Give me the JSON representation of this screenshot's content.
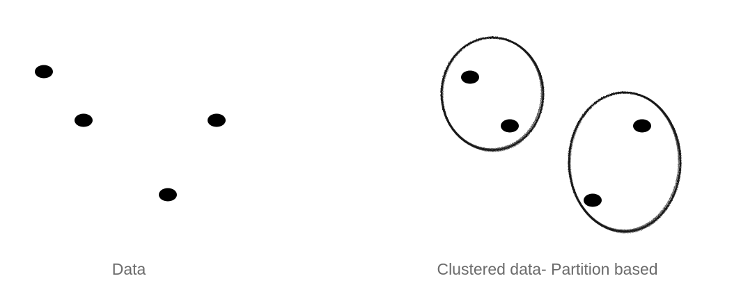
{
  "panels": [
    {
      "caption": "Data",
      "points": [
        "p1",
        "p2",
        "p3",
        "p4"
      ],
      "clusters": []
    },
    {
      "caption": "Clustered data- Partition based",
      "points": [
        "p1",
        "p2",
        "p3",
        "p4"
      ],
      "clusters": [
        {
          "members": [
            "p1",
            "p2"
          ]
        },
        {
          "members": [
            "p3",
            "p4"
          ]
        }
      ]
    }
  ],
  "colors": {
    "point": "#000000",
    "cluster_outline": "#1a1a1a",
    "caption": "#6b6b6b",
    "background": "#ffffff"
  }
}
